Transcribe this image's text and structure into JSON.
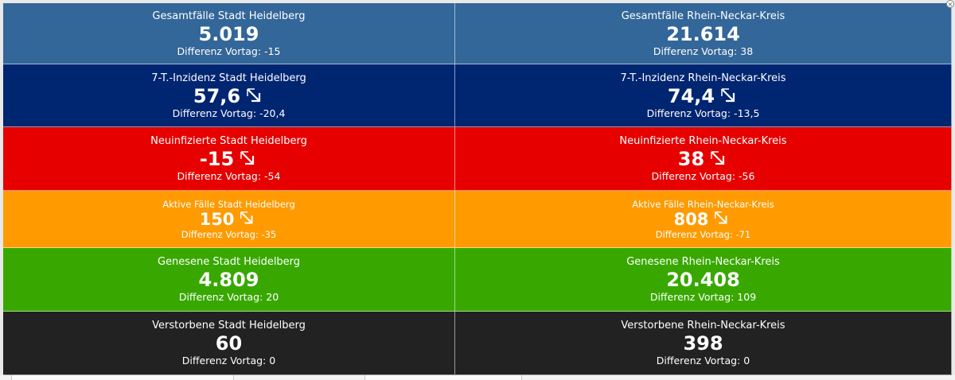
{
  "colors": {
    "row1": "#336699",
    "row2": "#002571",
    "row3": "#e60000",
    "row4": "#ff9a00",
    "row5": "#38a800",
    "row6": "#222222"
  },
  "rows": [
    {
      "left": {
        "title": "Gesamtfälle Stadt Heidelberg",
        "value": "5.019",
        "diff": "Differenz Vortag: -15"
      },
      "right": {
        "title": "Gesamtfälle Rhein-Neckar-Kreis",
        "value": "21.614",
        "diff": "Differenz Vortag: 38"
      }
    },
    {
      "left": {
        "title": "7-T.-Inzidenz Stadt Heidelberg",
        "value": "57,6",
        "diff": "Differenz Vortag: -20,4",
        "icon": "arrow-down-right-icon"
      },
      "right": {
        "title": "7-T.-Inzidenz Rhein-Neckar-Kreis",
        "value": "74,4",
        "diff": "Differenz Vortag: -13,5",
        "icon": "arrow-down-right-icon"
      }
    },
    {
      "left": {
        "title": "Neuinfizierte Stadt Heidelberg",
        "value": "-15",
        "diff": "Differenz Vortag: -54",
        "icon": "arrow-down-right-icon"
      },
      "right": {
        "title": "Neuinfizierte Rhein-Neckar-Kreis",
        "value": "38",
        "diff": "Differenz Vortag: -56",
        "icon": "arrow-down-right-icon"
      }
    },
    {
      "left": {
        "title": "Aktive Fälle Stadt Heidelberg",
        "value": "150",
        "diff": "Differenz Vortag: -35",
        "icon": "arrow-down-right-icon"
      },
      "right": {
        "title": "Aktive Fälle Rhein-Neckar-Kreis",
        "value": "808",
        "diff": "Differenz Vortag: -71",
        "icon": "arrow-down-right-icon"
      }
    },
    {
      "left": {
        "title": "Genesene Stadt Heidelberg",
        "value": "4.809",
        "diff": "Differenz Vortag: 20"
      },
      "right": {
        "title": "Genesene Rhein-Neckar-Kreis",
        "value": "20.408",
        "diff": "Differenz Vortag: 109"
      }
    },
    {
      "left": {
        "title": "Verstorbene Stadt Heidelberg",
        "value": "60",
        "diff": "Differenz Vortag: 0"
      },
      "right": {
        "title": "Verstorbene Rhein-Neckar-Kreis",
        "value": "398",
        "diff": "Differenz Vortag: 0"
      }
    }
  ]
}
